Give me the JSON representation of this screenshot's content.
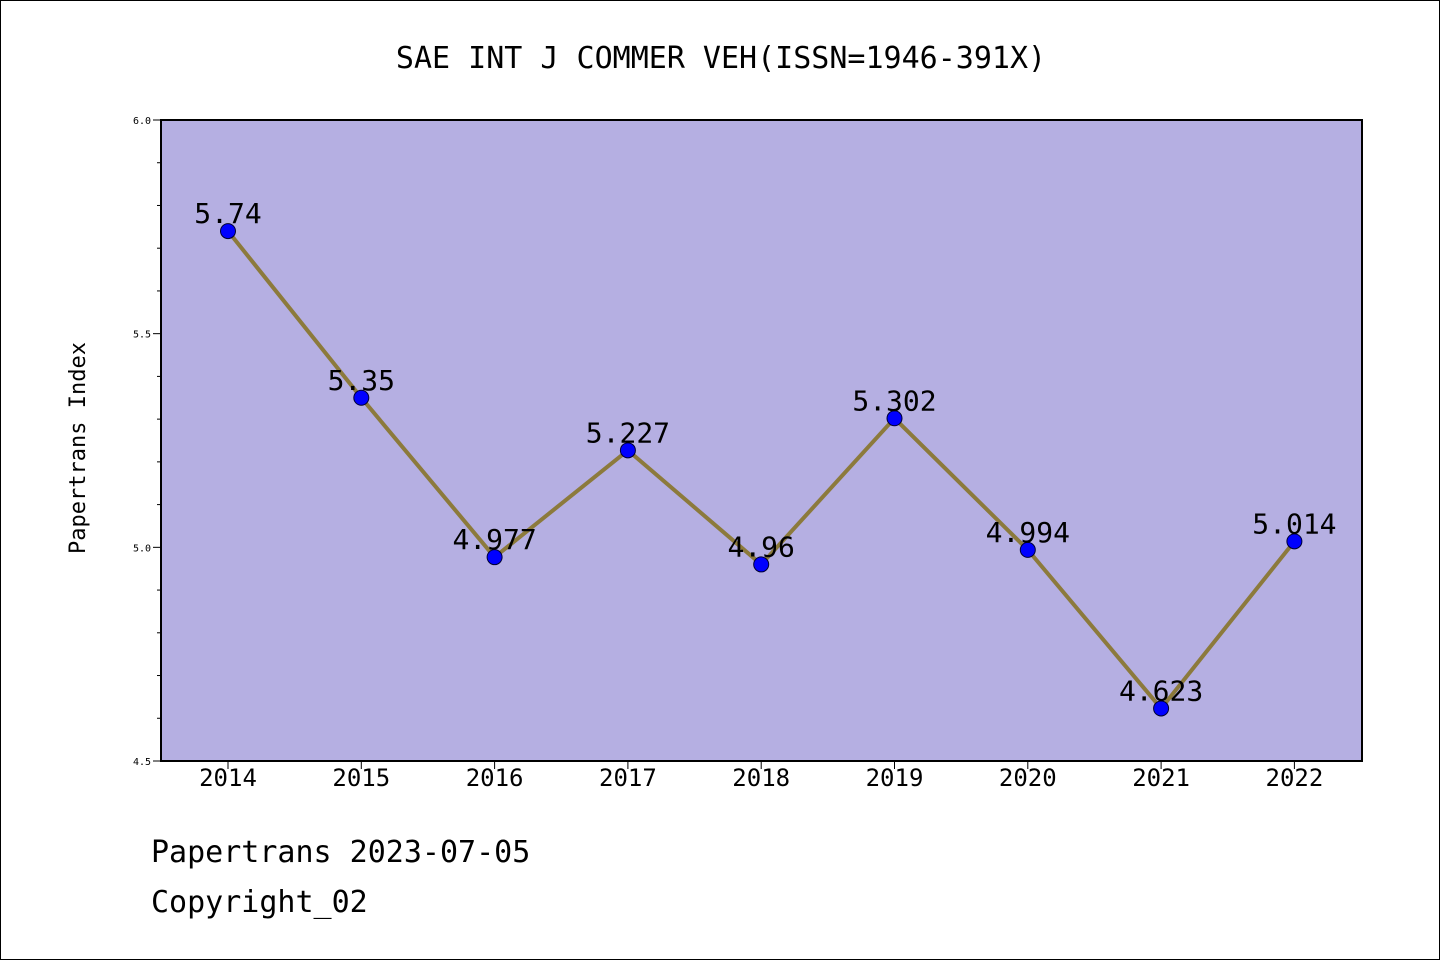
{
  "chart_data": {
    "type": "line",
    "title": "SAE INT J COMMER VEH(ISSN=1946-391X)",
    "ylabel": "Papertrans Index",
    "xlabel": "",
    "categories": [
      "2014",
      "2015",
      "2016",
      "2017",
      "2018",
      "2019",
      "2020",
      "2021",
      "2022"
    ],
    "values": [
      5.74,
      5.35,
      4.977,
      5.227,
      4.96,
      5.302,
      4.994,
      4.623,
      5.014
    ],
    "data_labels": [
      "5.74",
      "5.35",
      "4.977",
      "5.227",
      "4.96",
      "5.302",
      "4.994",
      "4.623",
      "5.014"
    ],
    "ylim": [
      4.5,
      6.0
    ],
    "yticks": [
      4.5,
      5.0,
      5.5,
      6.0
    ],
    "ytick_labels": [
      "4.5",
      "5.0",
      "5.5",
      "6.0"
    ],
    "grid": false,
    "colors": {
      "plot_background": "#b5afe2",
      "line": "#8c7a3c",
      "marker": "#0000ff"
    }
  },
  "footer": {
    "line1": "Papertrans 2023-07-05",
    "line2": "Copyright_02"
  }
}
